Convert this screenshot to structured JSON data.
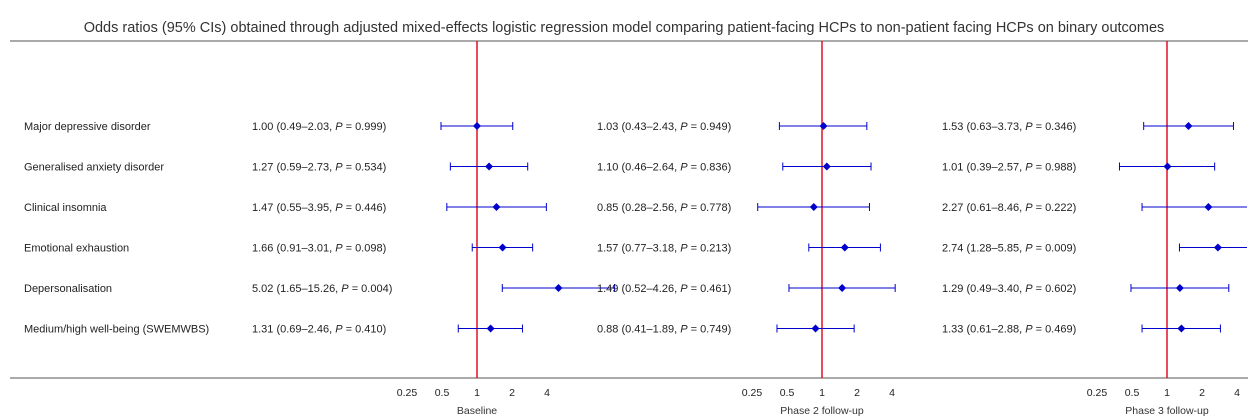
{
  "chart_data": {
    "type": "forest",
    "title": "Odds ratios (95% CIs) obtained through adjusted mixed-effects logistic regression model comparing patient-facing HCPs to non-patient facing HCPs on binary outcomes",
    "outcomes": [
      "Major depressive disorder",
      "Generalised anxiety disorder",
      "Clinical insomnia",
      "Emotional exhaustion",
      "Depersonalisation",
      "Medium/high well-being (SWEMWBS)"
    ],
    "x_scale": "log",
    "x_ticks": [
      "0.25",
      "0.5",
      "1",
      "2",
      "4"
    ],
    "reference_line": 1,
    "reference_color": "#e0001b",
    "marker_color": "#0000cc",
    "panels": [
      {
        "name": "Baseline",
        "rows": [
          {
            "or": 1.0,
            "lo": 0.49,
            "hi": 2.03,
            "text": "1.00 (0.49–2.03, ",
            "p": "0.999"
          },
          {
            "or": 1.27,
            "lo": 0.59,
            "hi": 2.73,
            "text": "1.27 (0.59–2.73, ",
            "p": "0.534"
          },
          {
            "or": 1.47,
            "lo": 0.55,
            "hi": 3.95,
            "text": "1.47 (0.55–3.95, ",
            "p": "0.446"
          },
          {
            "or": 1.66,
            "lo": 0.91,
            "hi": 3.01,
            "text": "1.66 (0.91–3.01, ",
            "p": "0.098"
          },
          {
            "or": 5.02,
            "lo": 1.65,
            "hi": 15.26,
            "text": "5.02 (1.65–15.26, ",
            "p": "0.004"
          },
          {
            "or": 1.31,
            "lo": 0.69,
            "hi": 2.46,
            "text": "1.31 (0.69–2.46, ",
            "p": "0.410"
          }
        ]
      },
      {
        "name": "Phase 2 follow-up",
        "rows": [
          {
            "or": 1.03,
            "lo": 0.43,
            "hi": 2.43,
            "text": "1.03 (0.43–2.43, ",
            "p": "0.949"
          },
          {
            "or": 1.1,
            "lo": 0.46,
            "hi": 2.64,
            "text": "1.10 (0.46–2.64, ",
            "p": "0.836"
          },
          {
            "or": 0.85,
            "lo": 0.28,
            "hi": 2.56,
            "text": "0.85 (0.28–2.56, ",
            "p": "0.778"
          },
          {
            "or": 1.57,
            "lo": 0.77,
            "hi": 3.18,
            "text": "1.57 (0.77–3.18, ",
            "p": "0.213"
          },
          {
            "or": 1.49,
            "lo": 0.52,
            "hi": 4.26,
            "text": "1.49 (0.52–4.26, ",
            "p": "0.461"
          },
          {
            "or": 0.88,
            "lo": 0.41,
            "hi": 1.89,
            "text": "0.88 (0.41–1.89, ",
            "p": "0.749"
          }
        ]
      },
      {
        "name": "Phase 3 follow-up",
        "rows": [
          {
            "or": 1.53,
            "lo": 0.63,
            "hi": 3.73,
            "text": "1.53 (0.63–3.73, ",
            "p": "0.346"
          },
          {
            "or": 1.01,
            "lo": 0.39,
            "hi": 2.57,
            "text": "1.01 (0.39–2.57, ",
            "p": "0.988"
          },
          {
            "or": 2.27,
            "lo": 0.61,
            "hi": 8.46,
            "text": "2.27 (0.61–8.46, ",
            "p": "0.222"
          },
          {
            "or": 2.74,
            "lo": 1.28,
            "hi": 5.85,
            "text": "2.74 (1.28–5.85, ",
            "p": "0.009"
          },
          {
            "or": 1.29,
            "lo": 0.49,
            "hi": 3.4,
            "text": "1.29 (0.49–3.40, ",
            "p": "0.602"
          },
          {
            "or": 1.33,
            "lo": 0.61,
            "hi": 2.88,
            "text": "1.33 (0.61–2.88, ",
            "p": "0.469"
          }
        ]
      }
    ]
  }
}
